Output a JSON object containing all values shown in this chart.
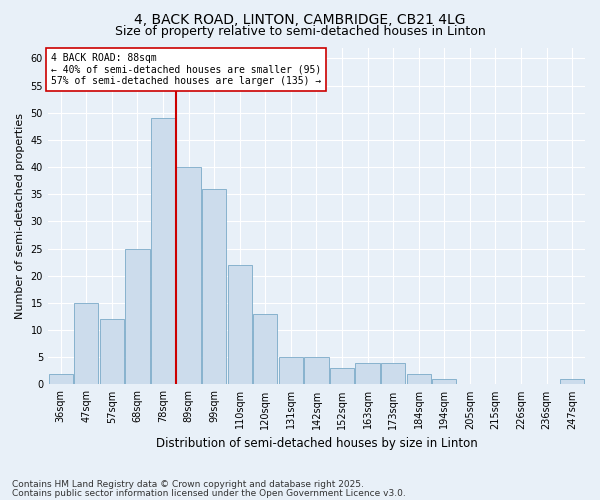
{
  "title1": "4, BACK ROAD, LINTON, CAMBRIDGE, CB21 4LG",
  "title2": "Size of property relative to semi-detached houses in Linton",
  "xlabel": "Distribution of semi-detached houses by size in Linton",
  "ylabel": "Number of semi-detached properties",
  "footnote1": "Contains HM Land Registry data © Crown copyright and database right 2025.",
  "footnote2": "Contains public sector information licensed under the Open Government Licence v3.0.",
  "categories": [
    "36sqm",
    "47sqm",
    "57sqm",
    "68sqm",
    "78sqm",
    "89sqm",
    "99sqm",
    "110sqm",
    "120sqm",
    "131sqm",
    "142sqm",
    "152sqm",
    "163sqm",
    "173sqm",
    "184sqm",
    "194sqm",
    "205sqm",
    "215sqm",
    "226sqm",
    "236sqm",
    "247sqm"
  ],
  "values": [
    2,
    15,
    12,
    25,
    49,
    40,
    36,
    22,
    13,
    5,
    5,
    3,
    4,
    4,
    2,
    1,
    0,
    0,
    0,
    0,
    1
  ],
  "bar_color": "#ccdcec",
  "bar_edge_color": "#7aaac8",
  "vline_color": "#cc0000",
  "annotation_text": "4 BACK ROAD: 88sqm\n← 40% of semi-detached houses are smaller (95)\n57% of semi-detached houses are larger (135) →",
  "annotation_box_facecolor": "#ffffff",
  "annotation_box_edgecolor": "#cc0000",
  "ylim": [
    0,
    62
  ],
  "yticks": [
    0,
    5,
    10,
    15,
    20,
    25,
    30,
    35,
    40,
    45,
    50,
    55,
    60
  ],
  "background_color": "#e8f0f8",
  "grid_color": "#ffffff",
  "title1_fontsize": 10,
  "title2_fontsize": 9,
  "tick_fontsize": 7,
  "xlabel_fontsize": 8.5,
  "ylabel_fontsize": 8,
  "annotation_fontsize": 7,
  "footnote_fontsize": 6.5
}
